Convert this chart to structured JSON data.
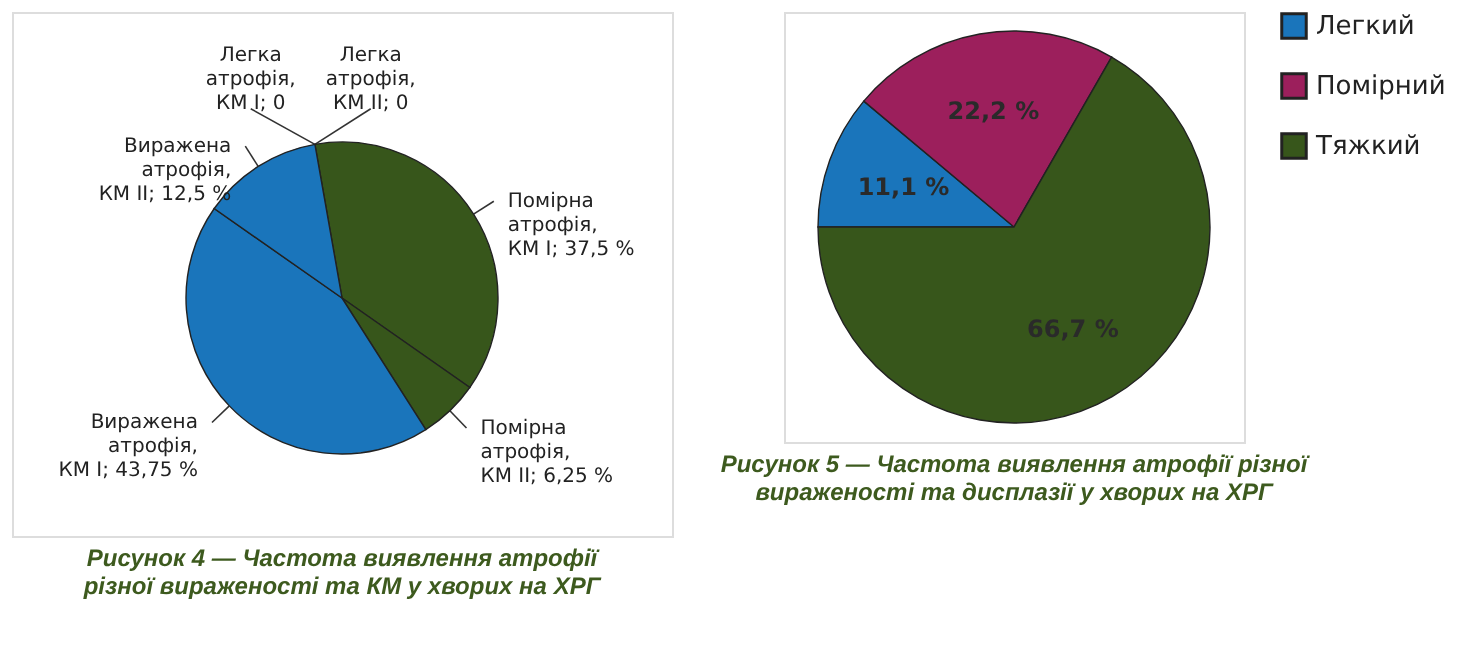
{
  "chart_data": [
    {
      "type": "pie",
      "title": "Рисунок 4 — Частота виявлення атрофії різної вираженості та КМ у хворих на ХРГ",
      "categories": [
        "Легка атрофія, КМ I; 0",
        "Легка атрофія, КМ II; 0",
        "Помірна атрофія, КМ I; 37,5 %",
        "Помірна атрофія, КМ II; 6,25 %",
        "Виражена атрофія, КМ I; 43,75 %",
        "Виражена атрофія, КМ II; 12,5 %"
      ],
      "values": [
        0,
        0,
        37.5,
        6.25,
        43.75,
        12.5
      ],
      "colors": [
        "#93b356",
        "#93b356",
        "#37561b",
        "#37561b",
        "#1a75bb",
        "#1a75bb"
      ],
      "legend": false
    },
    {
      "type": "pie",
      "title": "Рисунок 5 — Частота виявлення атрофії різної вираженості та дисплазії у хворих на ХРГ",
      "categories": [
        "Легкий",
        "Помірний",
        "Тяжкий"
      ],
      "values": [
        11.1,
        22.2,
        66.7
      ],
      "colors": [
        "#1a75bb",
        "#9c1f5c",
        "#37561b"
      ],
      "value_labels": [
        "11,1 %",
        "22,2 %",
        "66,7 %"
      ],
      "legend": "right"
    }
  ]
}
